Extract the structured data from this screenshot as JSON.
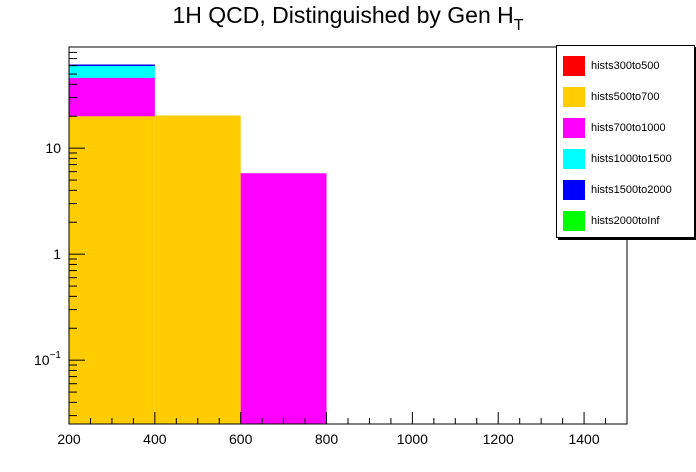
{
  "chart_data": {
    "type": "bar",
    "stacked": true,
    "title": "1H QCD, Distinguished by Gen H",
    "title_subscript": "T",
    "xlabel": "",
    "ylabel": "",
    "xlim": [
      200,
      1500
    ],
    "ylim": [
      0.025,
      90
    ],
    "yscale": "log",
    "grid": false,
    "legend_position": "top-right",
    "bin_edges": [
      200,
      400,
      600,
      800,
      1000,
      1200,
      1400,
      1500
    ],
    "x_ticks": [
      200,
      400,
      600,
      800,
      1000,
      1200,
      1400
    ],
    "y_ticks": [
      {
        "value": 0.1,
        "base": "10",
        "exp": "−1"
      },
      {
        "value": 1,
        "label": "1"
      },
      {
        "value": 10,
        "label": "10"
      }
    ],
    "series": [
      {
        "name": "hists300to500",
        "color": "#ff0000",
        "values": [
          0,
          0,
          0,
          0,
          0,
          0,
          0
        ]
      },
      {
        "name": "hists500to700",
        "color": "#ffcc00",
        "values": [
          20,
          20,
          0,
          0,
          0,
          0,
          0
        ]
      },
      {
        "name": "hists700to1000",
        "color": "#ff00ff",
        "values": [
          26,
          0,
          5.7,
          0,
          0,
          0,
          0
        ]
      },
      {
        "name": "hists1000to1500",
        "color": "#00ffff",
        "values": [
          14,
          0,
          0,
          0,
          0,
          0,
          0
        ]
      },
      {
        "name": "hists1500to2000",
        "color": "#0000ff",
        "values": [
          0.6,
          0,
          0,
          0,
          0,
          0,
          0
        ]
      },
      {
        "name": "hists2000toInf",
        "color": "#00ff00",
        "values": [
          0,
          0,
          0,
          0,
          0,
          0,
          0
        ]
      }
    ]
  }
}
